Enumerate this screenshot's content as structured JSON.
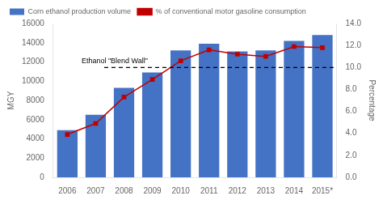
{
  "chart_data": {
    "type": "bar",
    "categories": [
      "2006",
      "2007",
      "2008",
      "2009",
      "2010",
      "2011",
      "2012",
      "2013",
      "2014",
      "2015*"
    ],
    "series": [
      {
        "name": "Corn ethanol production volume",
        "type": "bar",
        "color": "#4472C4",
        "values": [
          4900,
          6500,
          9300,
          10900,
          13200,
          13900,
          13100,
          13200,
          14200,
          14800
        ]
      },
      {
        "name": "% of conventional motor gasoline consumption",
        "type": "line",
        "color": "#C00000",
        "marker": "square",
        "line_style": "solid",
        "axis": "y2",
        "values": [
          3.9,
          4.9,
          7.3,
          8.9,
          10.6,
          11.6,
          11.2,
          11.0,
          11.9,
          11.8
        ]
      }
    ],
    "ylabel": "MGY",
    "y2label": "Percentage",
    "ylim": [
      0,
      16000
    ],
    "yticks": [
      0,
      2000,
      4000,
      6000,
      8000,
      10000,
      12000,
      14000,
      16000
    ],
    "y2lim": [
      0,
      14.0
    ],
    "y2ticks": [
      {
        "value": 0.0,
        "label": "0.0"
      },
      {
        "value": 2.0,
        "label": "2.0"
      },
      {
        "value": 4.0,
        "label": "4.0"
      },
      {
        "value": 6.0,
        "label": "6.0"
      },
      {
        "value": 8.0,
        "label": "8.0"
      },
      {
        "value": 10.0,
        "label": "10.0"
      },
      {
        "value": 12.0,
        "label": "12.0"
      },
      {
        "value": 14.0,
        "label": "14.0"
      }
    ],
    "annotations": [
      {
        "text": "Ethanol \"Blend Wall\"",
        "y": 10.0,
        "axis": "y2",
        "line_style": "dashed"
      }
    ],
    "legend": "upper left",
    "grid": false
  }
}
